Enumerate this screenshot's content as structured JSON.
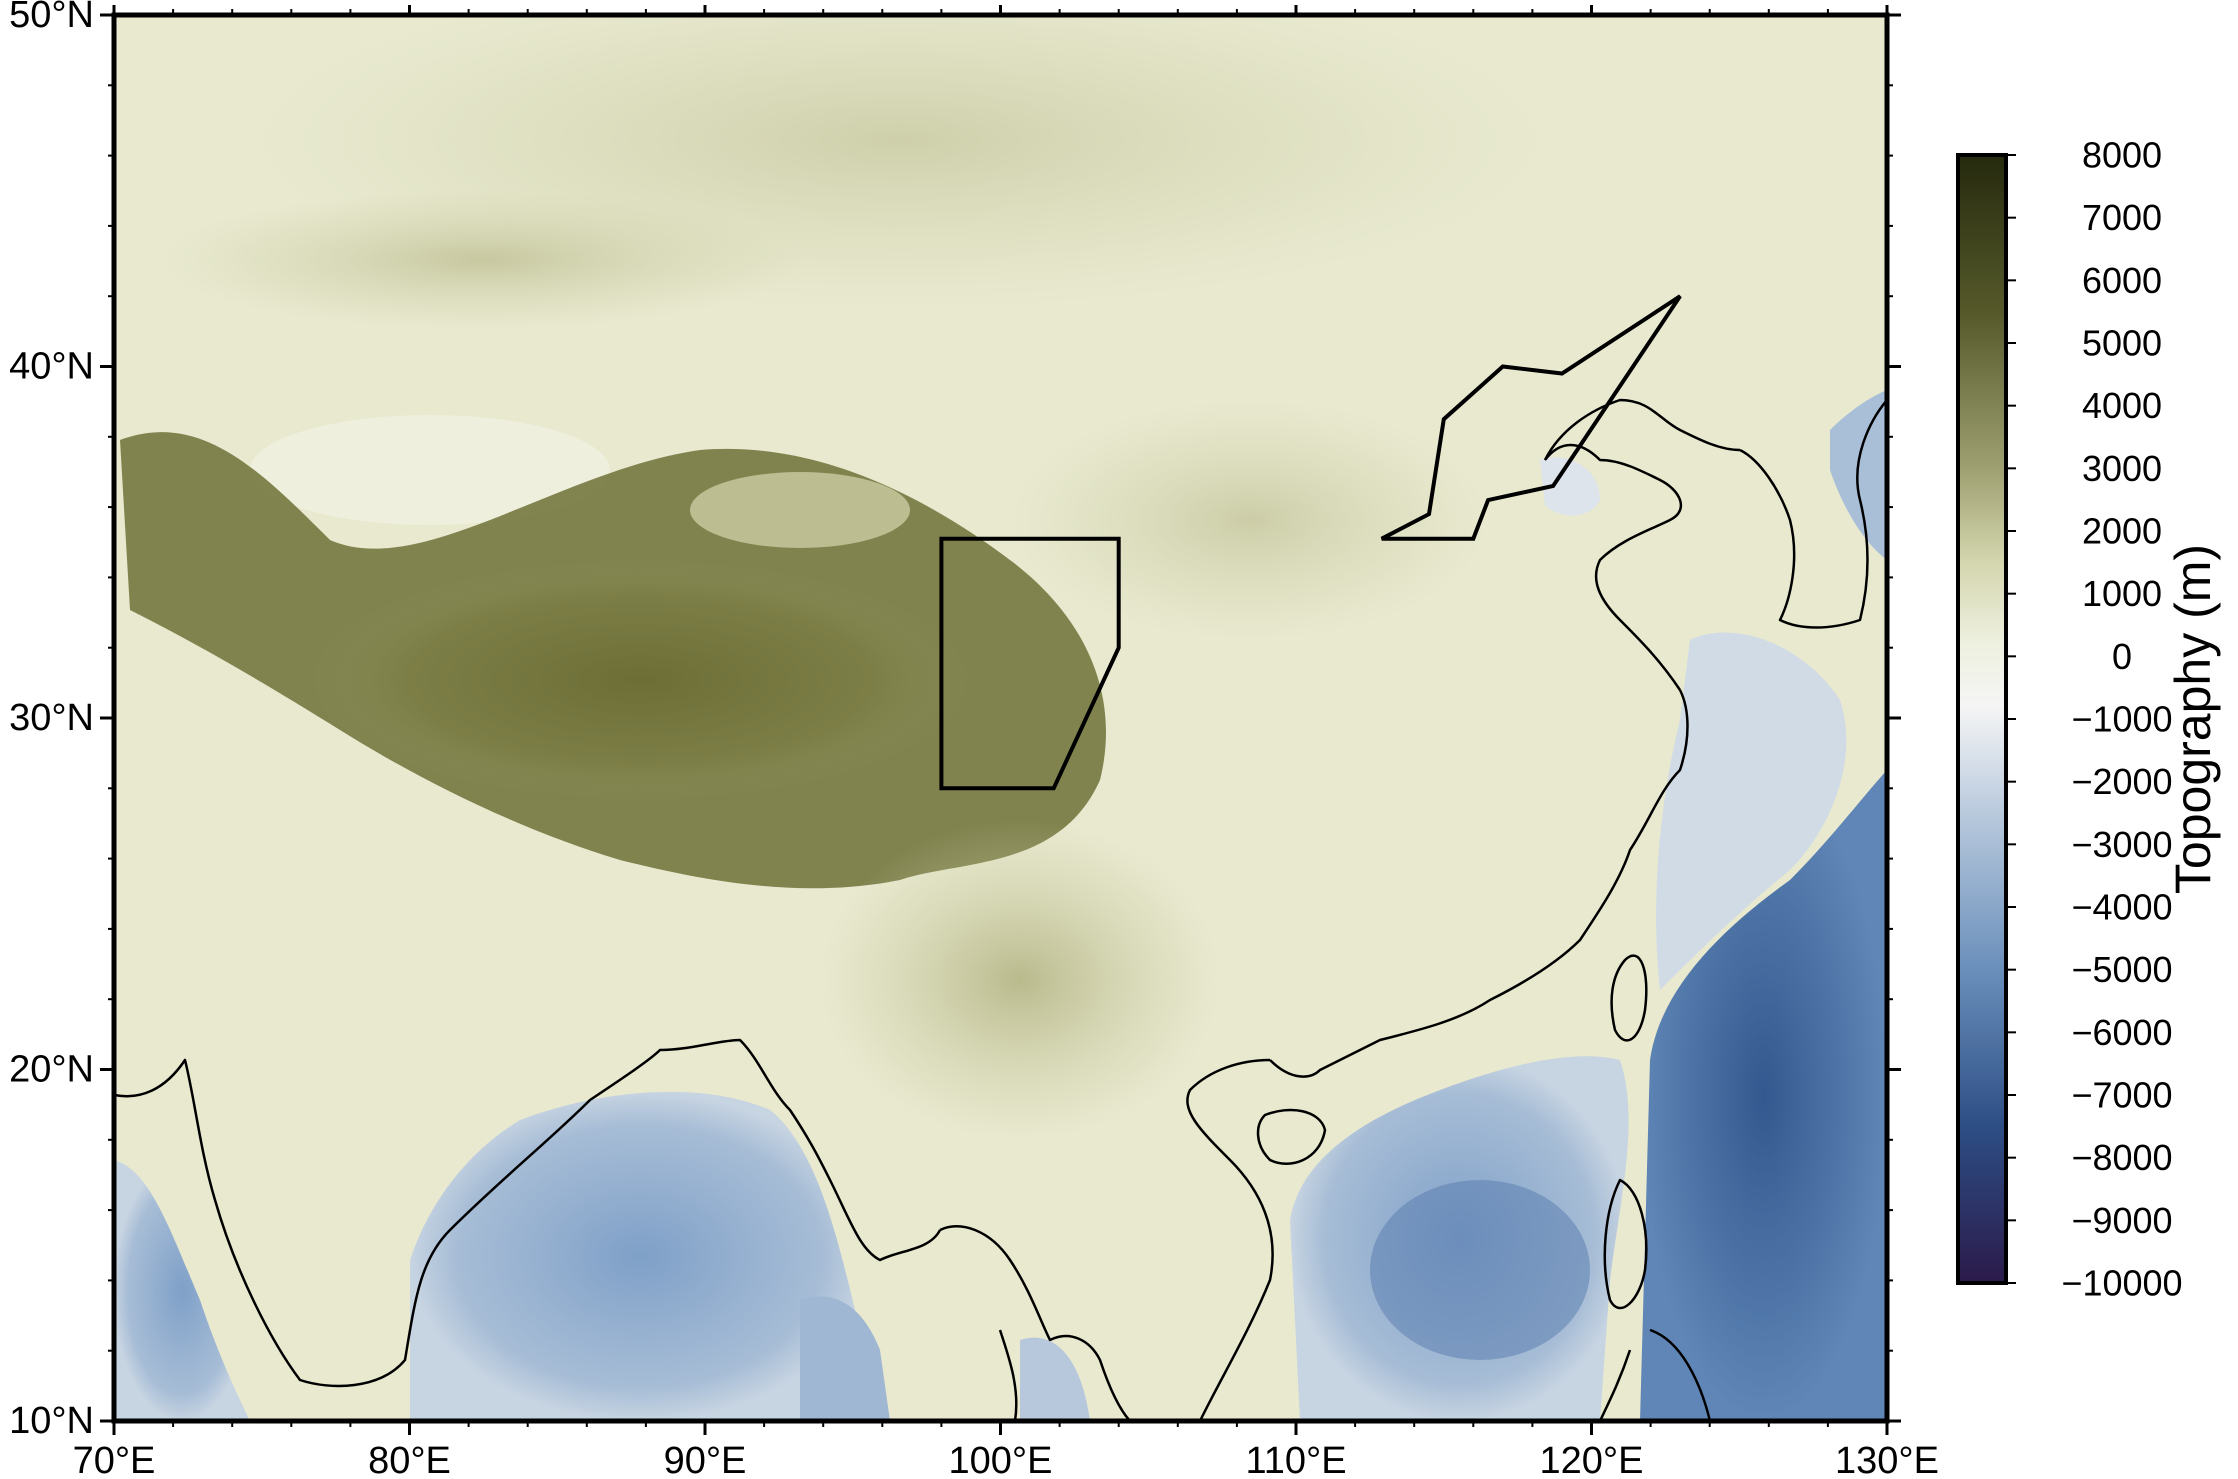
{
  "map": {
    "longitude_range": [
      70,
      130
    ],
    "latitude_range": [
      10,
      50
    ],
    "x_ticks": [
      {
        "value": 70,
        "label": "70°E"
      },
      {
        "value": 80,
        "label": "80°E"
      },
      {
        "value": 90,
        "label": "90°E"
      },
      {
        "value": 100,
        "label": "100°E"
      },
      {
        "value": 110,
        "label": "110°E"
      },
      {
        "value": 120,
        "label": "120°E"
      },
      {
        "value": 130,
        "label": "130°E"
      }
    ],
    "y_ticks": [
      {
        "value": 10,
        "label": "10°N"
      },
      {
        "value": 20,
        "label": "20°N"
      },
      {
        "value": 30,
        "label": "30°N"
      },
      {
        "value": 40,
        "label": "40°N"
      },
      {
        "value": 50,
        "label": "50°N"
      }
    ],
    "outlined_regions": [
      {
        "name": "sichuan-box",
        "coords": [
          [
            98.0,
            35.1
          ],
          [
            104.0,
            35.1
          ],
          [
            104.0,
            32.0
          ],
          [
            101.8,
            28.0
          ],
          [
            98.0,
            28.0
          ]
        ]
      },
      {
        "name": "north-china-polygon",
        "coords": [
          [
            112.9,
            35.1
          ],
          [
            114.5,
            35.8
          ],
          [
            115.0,
            38.5
          ],
          [
            117.0,
            40.0
          ],
          [
            119.0,
            39.8
          ],
          [
            123.0,
            42.0
          ],
          [
            118.7,
            36.6
          ],
          [
            116.5,
            36.2
          ],
          [
            116.0,
            35.1
          ]
        ]
      }
    ],
    "colors": {
      "land_high": "#3e4416",
      "land_mid": "#b8b98a",
      "land_low": "#eceedb",
      "ocean_shallow": "#b8c9dc",
      "ocean_deep": "#3e6595",
      "frame": "#000000"
    }
  },
  "colorbar": {
    "title": "Topography (m)",
    "range": [
      -10000,
      8000
    ],
    "labels": [
      "8000",
      "7000",
      "6000",
      "5000",
      "4000",
      "3000",
      "2000",
      "1000",
      "0",
      "−1000",
      "−2000",
      "−3000",
      "−4000",
      "−5000",
      "−6000",
      "−7000",
      "−8000",
      "−9000",
      "−10000"
    ],
    "stops": [
      {
        "value": 8000,
        "color": "#262a0e"
      },
      {
        "value": 5500,
        "color": "#55592a"
      },
      {
        "value": 3000,
        "color": "#9ea071"
      },
      {
        "value": 1500,
        "color": "#d4d6ae"
      },
      {
        "value": 200,
        "color": "#eef0e0"
      },
      {
        "value": -800,
        "color": "#f5f5f5"
      },
      {
        "value": -2500,
        "color": "#b9cadd"
      },
      {
        "value": -5000,
        "color": "#6a8fbb"
      },
      {
        "value": -7500,
        "color": "#2d4e85"
      },
      {
        "value": -10000,
        "color": "#2b1a4a"
      }
    ]
  }
}
